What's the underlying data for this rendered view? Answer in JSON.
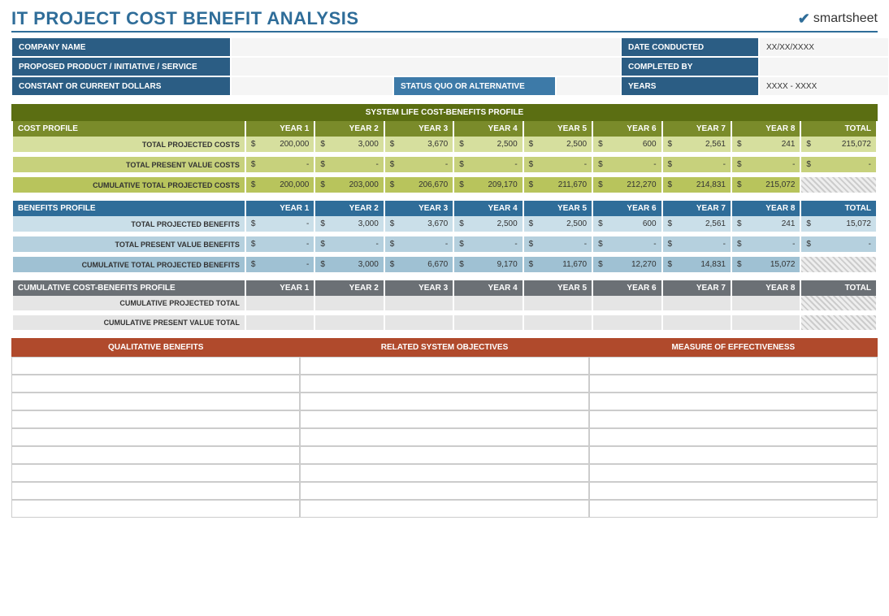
{
  "title": "IT PROJECT COST BENEFIT ANALYSIS",
  "logo_text": "smartsheet",
  "meta": {
    "company_lbl": "COMPANY NAME",
    "company_val": "",
    "date_lbl": "DATE CONDUCTED",
    "date_val": "XX/XX/XXXX",
    "proposed_lbl": "PROPOSED PRODUCT / INITIATIVE / SERVICE",
    "proposed_val": "",
    "completed_lbl": "COMPLETED BY",
    "completed_val": "",
    "constant_lbl": "CONSTANT OR CURRENT DOLLARS",
    "constant_val": "",
    "status_lbl": "STATUS QUO OR ALTERNATIVE",
    "status_val": "",
    "years_lbl": "YEARS",
    "years_val": "XXXX - XXXX"
  },
  "sys_title": "SYSTEM LIFE COST-BENEFITS PROFILE",
  "year_headers": [
    "YEAR 1",
    "YEAR 2",
    "YEAR 3",
    "YEAR 4",
    "YEAR 5",
    "YEAR 6",
    "YEAR 7",
    "YEAR 8"
  ],
  "total_header": "TOTAL",
  "cost": {
    "profile_lbl": "COST PROFILE",
    "row1_lbl": "TOTAL PROJECTED COSTS",
    "row1": [
      "200,000",
      "3,000",
      "3,670",
      "2,500",
      "2,500",
      "600",
      "2,561",
      "241"
    ],
    "row1_total": "215,072",
    "row2_lbl": "TOTAL PRESENT VALUE COSTS",
    "row2": [
      "-",
      "-",
      "-",
      "-",
      "-",
      "-",
      "-",
      "-"
    ],
    "row2_total": "-",
    "row3_lbl": "CUMULATIVE TOTAL PROJECTED COSTS",
    "row3": [
      "200,000",
      "203,000",
      "206,670",
      "209,170",
      "211,670",
      "212,270",
      "214,831",
      "215,072"
    ],
    "row3_total": ""
  },
  "ben": {
    "profile_lbl": "BENEFITS PROFILE",
    "row1_lbl": "TOTAL PROJECTED BENEFITS",
    "row1": [
      "-",
      "3,000",
      "3,670",
      "2,500",
      "2,500",
      "600",
      "2,561",
      "241"
    ],
    "row1_total": "15,072",
    "row2_lbl": "TOTAL PRESENT VALUE BENEFITS",
    "row2": [
      "-",
      "-",
      "-",
      "-",
      "-",
      "-",
      "-",
      "-"
    ],
    "row2_total": "-",
    "row3_lbl": "CUMULATIVE TOTAL PROJECTED BENEFITS",
    "row3": [
      "-",
      "3,000",
      "6,670",
      "9,170",
      "11,670",
      "12,270",
      "14,831",
      "15,072"
    ],
    "row3_total": ""
  },
  "cum": {
    "profile_lbl": "CUMULATIVE COST-BENEFITS PROFILE",
    "row1_lbl": "CUMULATIVE PROJECTED TOTAL",
    "row2_lbl": "CUMULATIVE PRESENT VALUE TOTAL"
  },
  "qual": {
    "h1": "QUALITATIVE BENEFITS",
    "h2": "RELATED SYSTEM OBJECTIVES",
    "h3": "MEASURE OF EFFECTIVENESS",
    "rows": 9
  },
  "currency": "$"
}
